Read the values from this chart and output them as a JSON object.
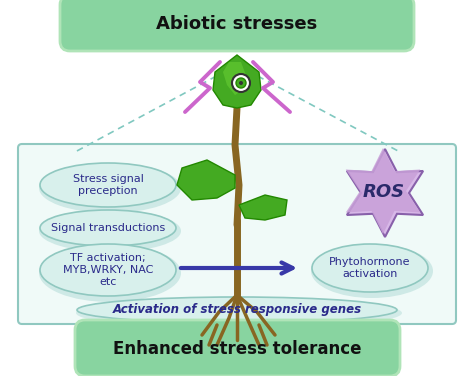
{
  "title_top": "Abiotic stresses",
  "title_bottom": "Enhanced stress tolerance",
  "label_stress_signal": "Stress signal\npreception",
  "label_signal_trans": "Signal transductions",
  "label_tf": "TF activation;\nMYB,WRKY, NAC\netc",
  "label_ros": "ROS",
  "label_phyto": "Phytohormone\nactivation",
  "label_activation": "Activation of stress responsive genes",
  "top_box_color": "#88d4a0",
  "top_box_edge": "#b0e4b8",
  "top_box_text_color": "#111111",
  "bottom_box_color": "#88d4a0",
  "bottom_box_edge": "#b0e4b8",
  "bottom_box_text_color": "#111111",
  "inner_box_bg": "#f0faf8",
  "inner_box_border": "#90c8c0",
  "ellipse_fill": "#d8f0ec",
  "ellipse_edge": "#90c8c0",
  "ellipse_shadow": "#b8deda",
  "ros_star_color1": "#c8a0d8",
  "ros_star_color2": "#b080cc",
  "ros_star_edge": "#8860aa",
  "arrow_color": "#3838a8",
  "lightning_color": "#cc66cc",
  "dashed_line_color": "#80c8c0",
  "plant_green_light": "#66cc33",
  "plant_green_mid": "#44aa22",
  "plant_green_dark": "#228800",
  "plant_stem_color": "#886622",
  "eye_color": "#228800",
  "background": "#ffffff",
  "text_blue": "#2a2a8a",
  "text_dark": "#111111"
}
